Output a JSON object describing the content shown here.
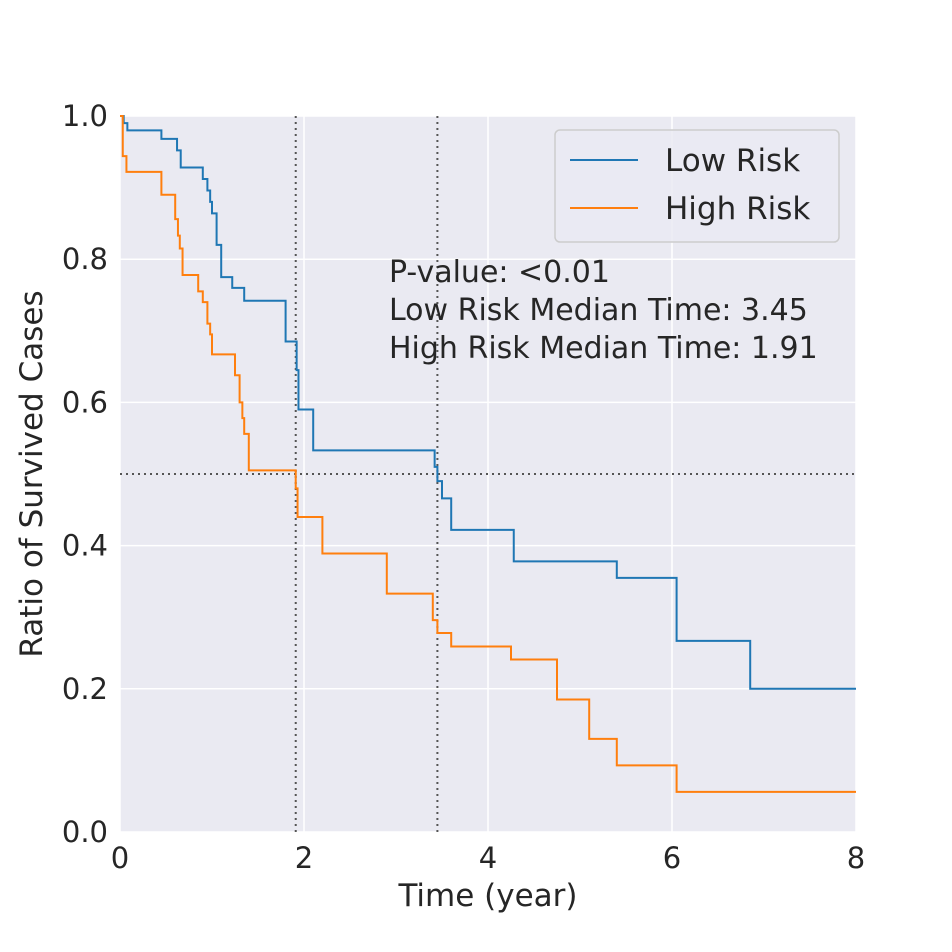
{
  "chart_data": {
    "type": "line",
    "step": true,
    "xlabel": "Time (year)",
    "ylabel": "Ratio of Survived Cases",
    "xlim": [
      0,
      8
    ],
    "ylim": [
      0,
      1.0
    ],
    "xticks": [
      "0",
      "2",
      "4",
      "6",
      "8"
    ],
    "yticks": [
      "0.0",
      "0.2",
      "0.4",
      "0.6",
      "0.8",
      "1.0"
    ],
    "grid": true,
    "legend_position": "top-right",
    "annotations": [
      "P-value: <0.01",
      "Low Risk Median Time: 3.45",
      "High Risk Median Time: 1.91"
    ],
    "reference_lines": {
      "horizontal_y": 0.5,
      "vertical_x": [
        1.91,
        3.45
      ]
    },
    "series": [
      {
        "name": "Low Risk",
        "color": "#1f77b4",
        "x": [
          0,
          0.04,
          0.08,
          0.45,
          0.62,
          0.66,
          0.9,
          0.95,
          0.98,
          1.0,
          1.05,
          1.1,
          1.22,
          1.35,
          1.8,
          1.92,
          1.94,
          2.1,
          3.42,
          3.45,
          3.5,
          3.6,
          4.28,
          5.4,
          6.05,
          6.85,
          8.0
        ],
        "y": [
          1.0,
          0.99,
          0.98,
          0.968,
          0.952,
          0.928,
          0.912,
          0.896,
          0.88,
          0.864,
          0.82,
          0.775,
          0.76,
          0.742,
          0.685,
          0.645,
          0.59,
          0.533,
          0.51,
          0.49,
          0.466,
          0.422,
          0.378,
          0.355,
          0.267,
          0.2,
          0.2
        ]
      },
      {
        "name": "High Risk",
        "color": "#ff7f0e",
        "x": [
          0,
          0.03,
          0.07,
          0.45,
          0.6,
          0.63,
          0.65,
          0.68,
          0.85,
          0.9,
          0.95,
          0.98,
          1.0,
          1.25,
          1.3,
          1.33,
          1.35,
          1.4,
          1.91,
          1.93,
          2.2,
          2.9,
          3.4,
          3.45,
          3.6,
          4.25,
          4.75,
          5.1,
          5.4,
          6.05,
          8.0
        ],
        "y": [
          1.0,
          0.944,
          0.922,
          0.89,
          0.856,
          0.833,
          0.815,
          0.778,
          0.755,
          0.74,
          0.71,
          0.695,
          0.667,
          0.638,
          0.6,
          0.578,
          0.556,
          0.505,
          0.48,
          0.44,
          0.389,
          0.333,
          0.296,
          0.278,
          0.259,
          0.241,
          0.185,
          0.13,
          0.093,
          0.056,
          0.056
        ]
      }
    ]
  }
}
